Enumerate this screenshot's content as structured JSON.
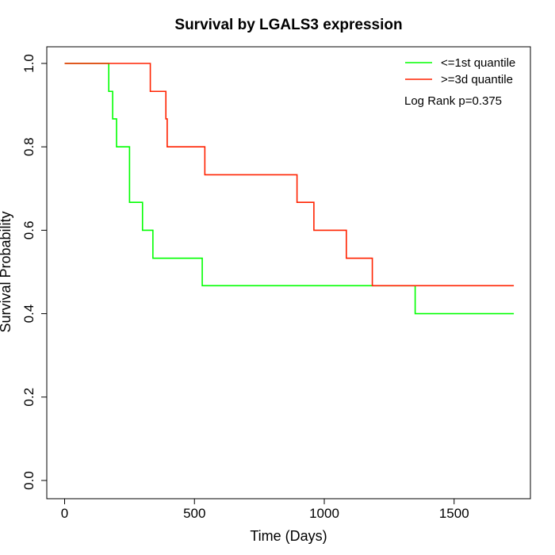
{
  "chart_data": {
    "type": "line",
    "title": "Survival by LGALS3 expression",
    "xlabel": "Time (Days)",
    "ylabel": "Survival Probability",
    "xlim": [
      0,
      1730
    ],
    "ylim": [
      0,
      1
    ],
    "xticks": [
      0,
      500,
      1000,
      1500
    ],
    "yticks": [
      0.0,
      0.2,
      0.4,
      0.6,
      0.8,
      1.0
    ],
    "xtick_labels": [
      "0",
      "500",
      "1000",
      "1500"
    ],
    "ytick_labels": [
      "0.0",
      "0.2",
      "0.4",
      "0.6",
      "0.8",
      "1.0"
    ],
    "grid": false,
    "legend_position": "top-right",
    "annotation": "Log Rank p=0.375",
    "series": [
      {
        "name": "<=1st quantile",
        "color": "#00ff00",
        "step": true,
        "x": [
          0,
          170,
          185,
          200,
          250,
          300,
          340,
          530,
          1350,
          1730
        ],
        "y": [
          1.0,
          0.933,
          0.867,
          0.8,
          0.667,
          0.6,
          0.533,
          0.467,
          0.4,
          0.4
        ]
      },
      {
        "name": ">=3d quantile",
        "color": "#ff2200",
        "step": true,
        "x": [
          0,
          330,
          390,
          395,
          540,
          895,
          960,
          1085,
          1185,
          1730
        ],
        "y": [
          1.0,
          0.933,
          0.867,
          0.8,
          0.733,
          0.667,
          0.6,
          0.533,
          0.467,
          0.467
        ]
      }
    ]
  }
}
